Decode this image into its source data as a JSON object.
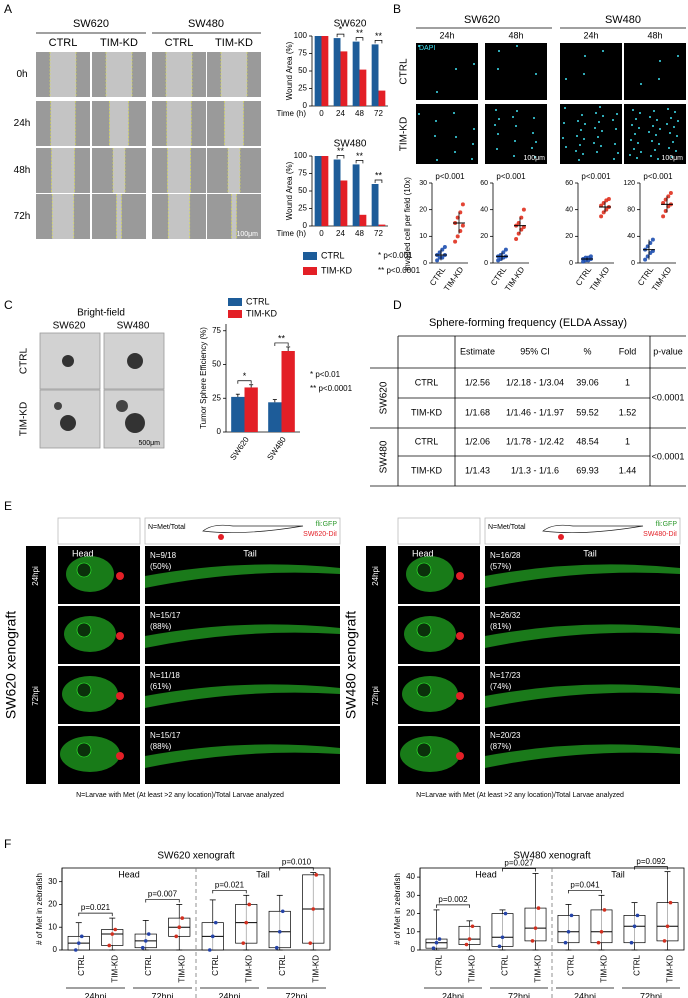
{
  "figure": {
    "panel_labels": [
      "A",
      "B",
      "C",
      "D",
      "E",
      "F"
    ],
    "a": {
      "cell_lines": [
        "SW620",
        "SW480"
      ],
      "conditions": [
        "CTRL",
        "TIM-KD",
        "CTRL",
        "TIM-KD"
      ],
      "times": [
        "0h",
        "24h",
        "48h",
        "72h"
      ],
      "scale": "100μm",
      "legend_notes": [
        "* p<0.001",
        "** p<0.0001"
      ]
    },
    "b": {
      "cell_lines": [
        "SW620",
        "SW480"
      ],
      "times": [
        "24h",
        "48h",
        "24h",
        "48h"
      ],
      "stain": "DAPI",
      "conditions": [
        "CTRL",
        "TIM-KD"
      ],
      "scales": [
        "100μm",
        "100μm"
      ],
      "ylabel": "Invaded cell per field (10x)"
    },
    "c": {
      "title": "Bright-field",
      "cell_lines": [
        "SW620",
        "SW480"
      ],
      "conditions": [
        "CTRL",
        "TIM-KD"
      ],
      "scale": "500μm",
      "legend_notes": [
        "* p<0.01",
        "** p<0.0001"
      ]
    },
    "d": {
      "title": "Sphere-forming frequency (ELDA Assay)",
      "header": [
        "Estimate",
        "95% CI",
        "%",
        "Fold",
        "p-value"
      ],
      "groups": [
        {
          "name": "SW620",
          "p": "<0.0001",
          "rows": [
            [
              "CTRL",
              "1/2.56",
              "1/2.18 - 1/3.04",
              "39.06",
              "1"
            ],
            [
              "TIM-KD",
              "1/1.68",
              "1/1.46 - 1/1.97",
              "59.52",
              "1.52"
            ]
          ]
        },
        {
          "name": "SW480",
          "p": "<0.0001",
          "rows": [
            [
              "CTRL",
              "1/2.06",
              "1/1.78 - 1/2.42",
              "48.54",
              "1"
            ],
            [
              "TIM-KD",
              "1/1.43",
              "1/1.3 - 1/1.6",
              "69.93",
              "1.44"
            ]
          ]
        }
      ]
    },
    "e": {
      "panels": [
        {
          "title": "SW620 xenograft",
          "markers": [
            "fli:GFP",
            "SW620-DiI"
          ],
          "regions": [
            "Head",
            "Tail"
          ],
          "count_label": "N=Met/Total",
          "times": [
            "24hpi",
            "72hpi"
          ],
          "rows": [
            {
              "condition": "CTRL",
              "n": "N=9/18",
              "pct": "(50%)"
            },
            {
              "condition": "TIM-KD",
              "n": "N=15/17",
              "pct": "(88%)"
            },
            {
              "condition": "CTRL",
              "n": "N=11/18",
              "pct": "(61%)"
            },
            {
              "condition": "TIM-KD",
              "n": "N=15/17",
              "pct": "(88%)"
            }
          ],
          "footnote": "N=Larvae with Met (At least >2 any location)/Total Larvae analyzed"
        },
        {
          "title": "SW480 xenograft",
          "markers": [
            "fli:GFP",
            "SW480-DiI"
          ],
          "regions": [
            "Head",
            "Tail"
          ],
          "count_label": "N=Met/Total",
          "times": [
            "24hpi",
            "72hpi"
          ],
          "rows": [
            {
              "condition": "CTRL",
              "n": "N=16/28",
              "pct": "(57%)"
            },
            {
              "condition": "TIM-KD",
              "n": "N=26/32",
              "pct": "(81%)"
            },
            {
              "condition": "CTRL",
              "n": "N=17/23",
              "pct": "(74%)"
            },
            {
              "condition": "TIM-KD",
              "n": "N=20/23",
              "pct": "(87%)"
            }
          ],
          "footnote": "N=Larvae with Met (At least >2 any location)/Total Larvae analyzed"
        }
      ]
    }
  },
  "chart_data": [
    {
      "type": "bar",
      "title": "SW620",
      "ylabel": "Wound Area (%)",
      "xlabel": "Time (h)",
      "categories": [
        "0",
        "24",
        "48",
        "72"
      ],
      "series": [
        {
          "name": "CTRL",
          "color": "#1d5c99",
          "values": [
            100,
            97,
            92,
            88
          ]
        },
        {
          "name": "TIM-KD",
          "color": "#e31f26",
          "values": [
            100,
            78,
            52,
            22
          ]
        }
      ],
      "significance": [
        null,
        "*",
        "**",
        "**"
      ],
      "ylim": [
        0,
        100
      ],
      "yticks": [
        0,
        25,
        50,
        75,
        100
      ]
    },
    {
      "type": "bar",
      "title": "SW480",
      "ylabel": "Wound Area (%)",
      "xlabel": "Time (h)",
      "categories": [
        "0",
        "24",
        "48",
        "72"
      ],
      "series": [
        {
          "name": "CTRL",
          "color": "#1d5c99",
          "values": [
            100,
            95,
            88,
            60
          ]
        },
        {
          "name": "TIM-KD",
          "color": "#e31f26",
          "values": [
            100,
            65,
            16,
            2
          ]
        }
      ],
      "significance": [
        null,
        "**",
        "**",
        "**"
      ],
      "ylim": [
        0,
        100
      ],
      "yticks": [
        0,
        25,
        50,
        75,
        100
      ]
    },
    {
      "type": "dot",
      "categories": [
        "CTRL",
        "TIM-KD"
      ],
      "colors": [
        "#1d4fb0",
        "#e0301e"
      ],
      "annotation": "p<0.001",
      "means": [
        3,
        15
      ],
      "errors": [
        2,
        4
      ],
      "points": [
        [
          1,
          2,
          2,
          3,
          3,
          4,
          5,
          6
        ],
        [
          8,
          10,
          12,
          14,
          15,
          17,
          19,
          22
        ]
      ],
      "ylim": [
        0,
        30
      ],
      "yticks": [
        0,
        10,
        20,
        30
      ]
    },
    {
      "type": "dot",
      "categories": [
        "CTRL",
        "TIM-KD"
      ],
      "colors": [
        "#1d4fb0",
        "#e0301e"
      ],
      "annotation": "p<0.001",
      "means": [
        5,
        28
      ],
      "errors": [
        3,
        6
      ],
      "points": [
        [
          2,
          3,
          4,
          5,
          5,
          6,
          8,
          10
        ],
        [
          18,
          22,
          25,
          27,
          28,
          30,
          34,
          40
        ]
      ],
      "ylim": [
        0,
        60
      ],
      "yticks": [
        0,
        20,
        40,
        60
      ]
    },
    {
      "type": "dot",
      "categories": [
        "CTRL",
        "TIM-KD"
      ],
      "colors": [
        "#1d4fb0",
        "#e0301e"
      ],
      "annotation": "p<0.001",
      "means": [
        3,
        42
      ],
      "errors": [
        1,
        4
      ],
      "points": [
        [
          1,
          2,
          2,
          3,
          3,
          4,
          4,
          5
        ],
        [
          35,
          38,
          40,
          42,
          43,
          45,
          47,
          48
        ]
      ],
      "ylim": [
        0,
        60
      ],
      "yticks": [
        0,
        20,
        40,
        60
      ]
    },
    {
      "type": "dot",
      "categories": [
        "CTRL",
        "TIM-KD"
      ],
      "colors": [
        "#1d4fb0",
        "#e0301e"
      ],
      "annotation": "p<0.001",
      "means": [
        20,
        88
      ],
      "errors": [
        15,
        12
      ],
      "points": [
        [
          5,
          10,
          15,
          18,
          20,
          25,
          30,
          35
        ],
        [
          70,
          78,
          85,
          88,
          90,
          95,
          100,
          105
        ]
      ],
      "ylim": [
        0,
        120
      ],
      "yticks": [
        0,
        40,
        80,
        120
      ]
    },
    {
      "type": "bar",
      "ylabel": "Tumor Sphere Efficiency (%)",
      "categories": [
        "SW620",
        "SW480"
      ],
      "series": [
        {
          "name": "CTRL",
          "color": "#1d5c99",
          "values": [
            26,
            22
          ],
          "errors": [
            2,
            2
          ]
        },
        {
          "name": "TIM-KD",
          "color": "#e31f26",
          "values": [
            33,
            60
          ],
          "errors": [
            2,
            3
          ]
        }
      ],
      "significance": [
        "*",
        "**"
      ],
      "ylim": [
        0,
        80
      ],
      "yticks": [
        0,
        25,
        50,
        75
      ]
    },
    {
      "type": "box",
      "title": "SW620 xenograft",
      "ylabel": "# of Met in zebrafish",
      "regions": [
        "Head",
        "Tail"
      ],
      "categories": [
        "CTRL",
        "TIM-KD",
        "CTRL",
        "TIM-KD",
        "CTRL",
        "TIM-KD",
        "CTRL",
        "TIM-KD"
      ],
      "colors": [
        "#2443a8",
        "#d12f1f"
      ],
      "groups": [
        "24hpi",
        "72hpi",
        "24hpi",
        "72hpi"
      ],
      "pvalues": [
        "p=0.021",
        "p=0.007",
        "p=0.021",
        "p=0.010"
      ],
      "boxes": [
        {
          "min": 0,
          "q1": 0,
          "median": 3,
          "q3": 6,
          "max": 12
        },
        {
          "min": 0,
          "q1": 2,
          "median": 7,
          "q3": 9,
          "max": 14
        },
        {
          "min": 0,
          "q1": 1,
          "median": 4,
          "q3": 7,
          "max": 13
        },
        {
          "min": 0,
          "q1": 6,
          "median": 10,
          "q3": 14,
          "max": 20
        },
        {
          "min": 0,
          "q1": 0,
          "median": 6,
          "q3": 12,
          "max": 22
        },
        {
          "min": 0,
          "q1": 3,
          "median": 12,
          "q3": 20,
          "max": 24
        },
        {
          "min": 0,
          "q1": 1,
          "median": 8,
          "q3": 17,
          "max": 24
        },
        {
          "min": 0,
          "q1": 3,
          "median": 18,
          "q3": 33,
          "max": 34
        }
      ],
      "ylim": [
        0,
        36
      ],
      "yticks": [
        0,
        10,
        20,
        30
      ]
    },
    {
      "type": "box",
      "title": "SW480 xenograft",
      "ylabel": "# of Met in zebrafish",
      "regions": [
        "Head",
        "Tail"
      ],
      "categories": [
        "CTRL",
        "TIM-KD",
        "CTRL",
        "TIM-KD",
        "CTRL",
        "TIM-KD",
        "CTRL",
        "TIM-KD"
      ],
      "colors": [
        "#2443a8",
        "#d12f1f"
      ],
      "groups": [
        "24hpi",
        "72hpi",
        "24hpi",
        "72hpi"
      ],
      "pvalues": [
        "p=0.002",
        "p=0.027",
        "p=0.041",
        "p=0.092"
      ],
      "boxes": [
        {
          "min": 0,
          "q1": 1,
          "median": 4,
          "q3": 6,
          "max": 22
        },
        {
          "min": 0,
          "q1": 3,
          "median": 6,
          "q3": 13,
          "max": 16
        },
        {
          "min": 0,
          "q1": 2,
          "median": 7,
          "q3": 20,
          "max": 22
        },
        {
          "min": 0,
          "q1": 5,
          "median": 12,
          "q3": 23,
          "max": 42
        },
        {
          "min": 0,
          "q1": 4,
          "median": 10,
          "q3": 19,
          "max": 25
        },
        {
          "min": 0,
          "q1": 4,
          "median": 10,
          "q3": 22,
          "max": 30
        },
        {
          "min": 0,
          "q1": 4,
          "median": 13,
          "q3": 19,
          "max": 26
        },
        {
          "min": 0,
          "q1": 5,
          "median": 13,
          "q3": 26,
          "max": 43
        }
      ],
      "ylim": [
        0,
        45
      ],
      "yticks": [
        0,
        10,
        20,
        30,
        40
      ]
    }
  ]
}
